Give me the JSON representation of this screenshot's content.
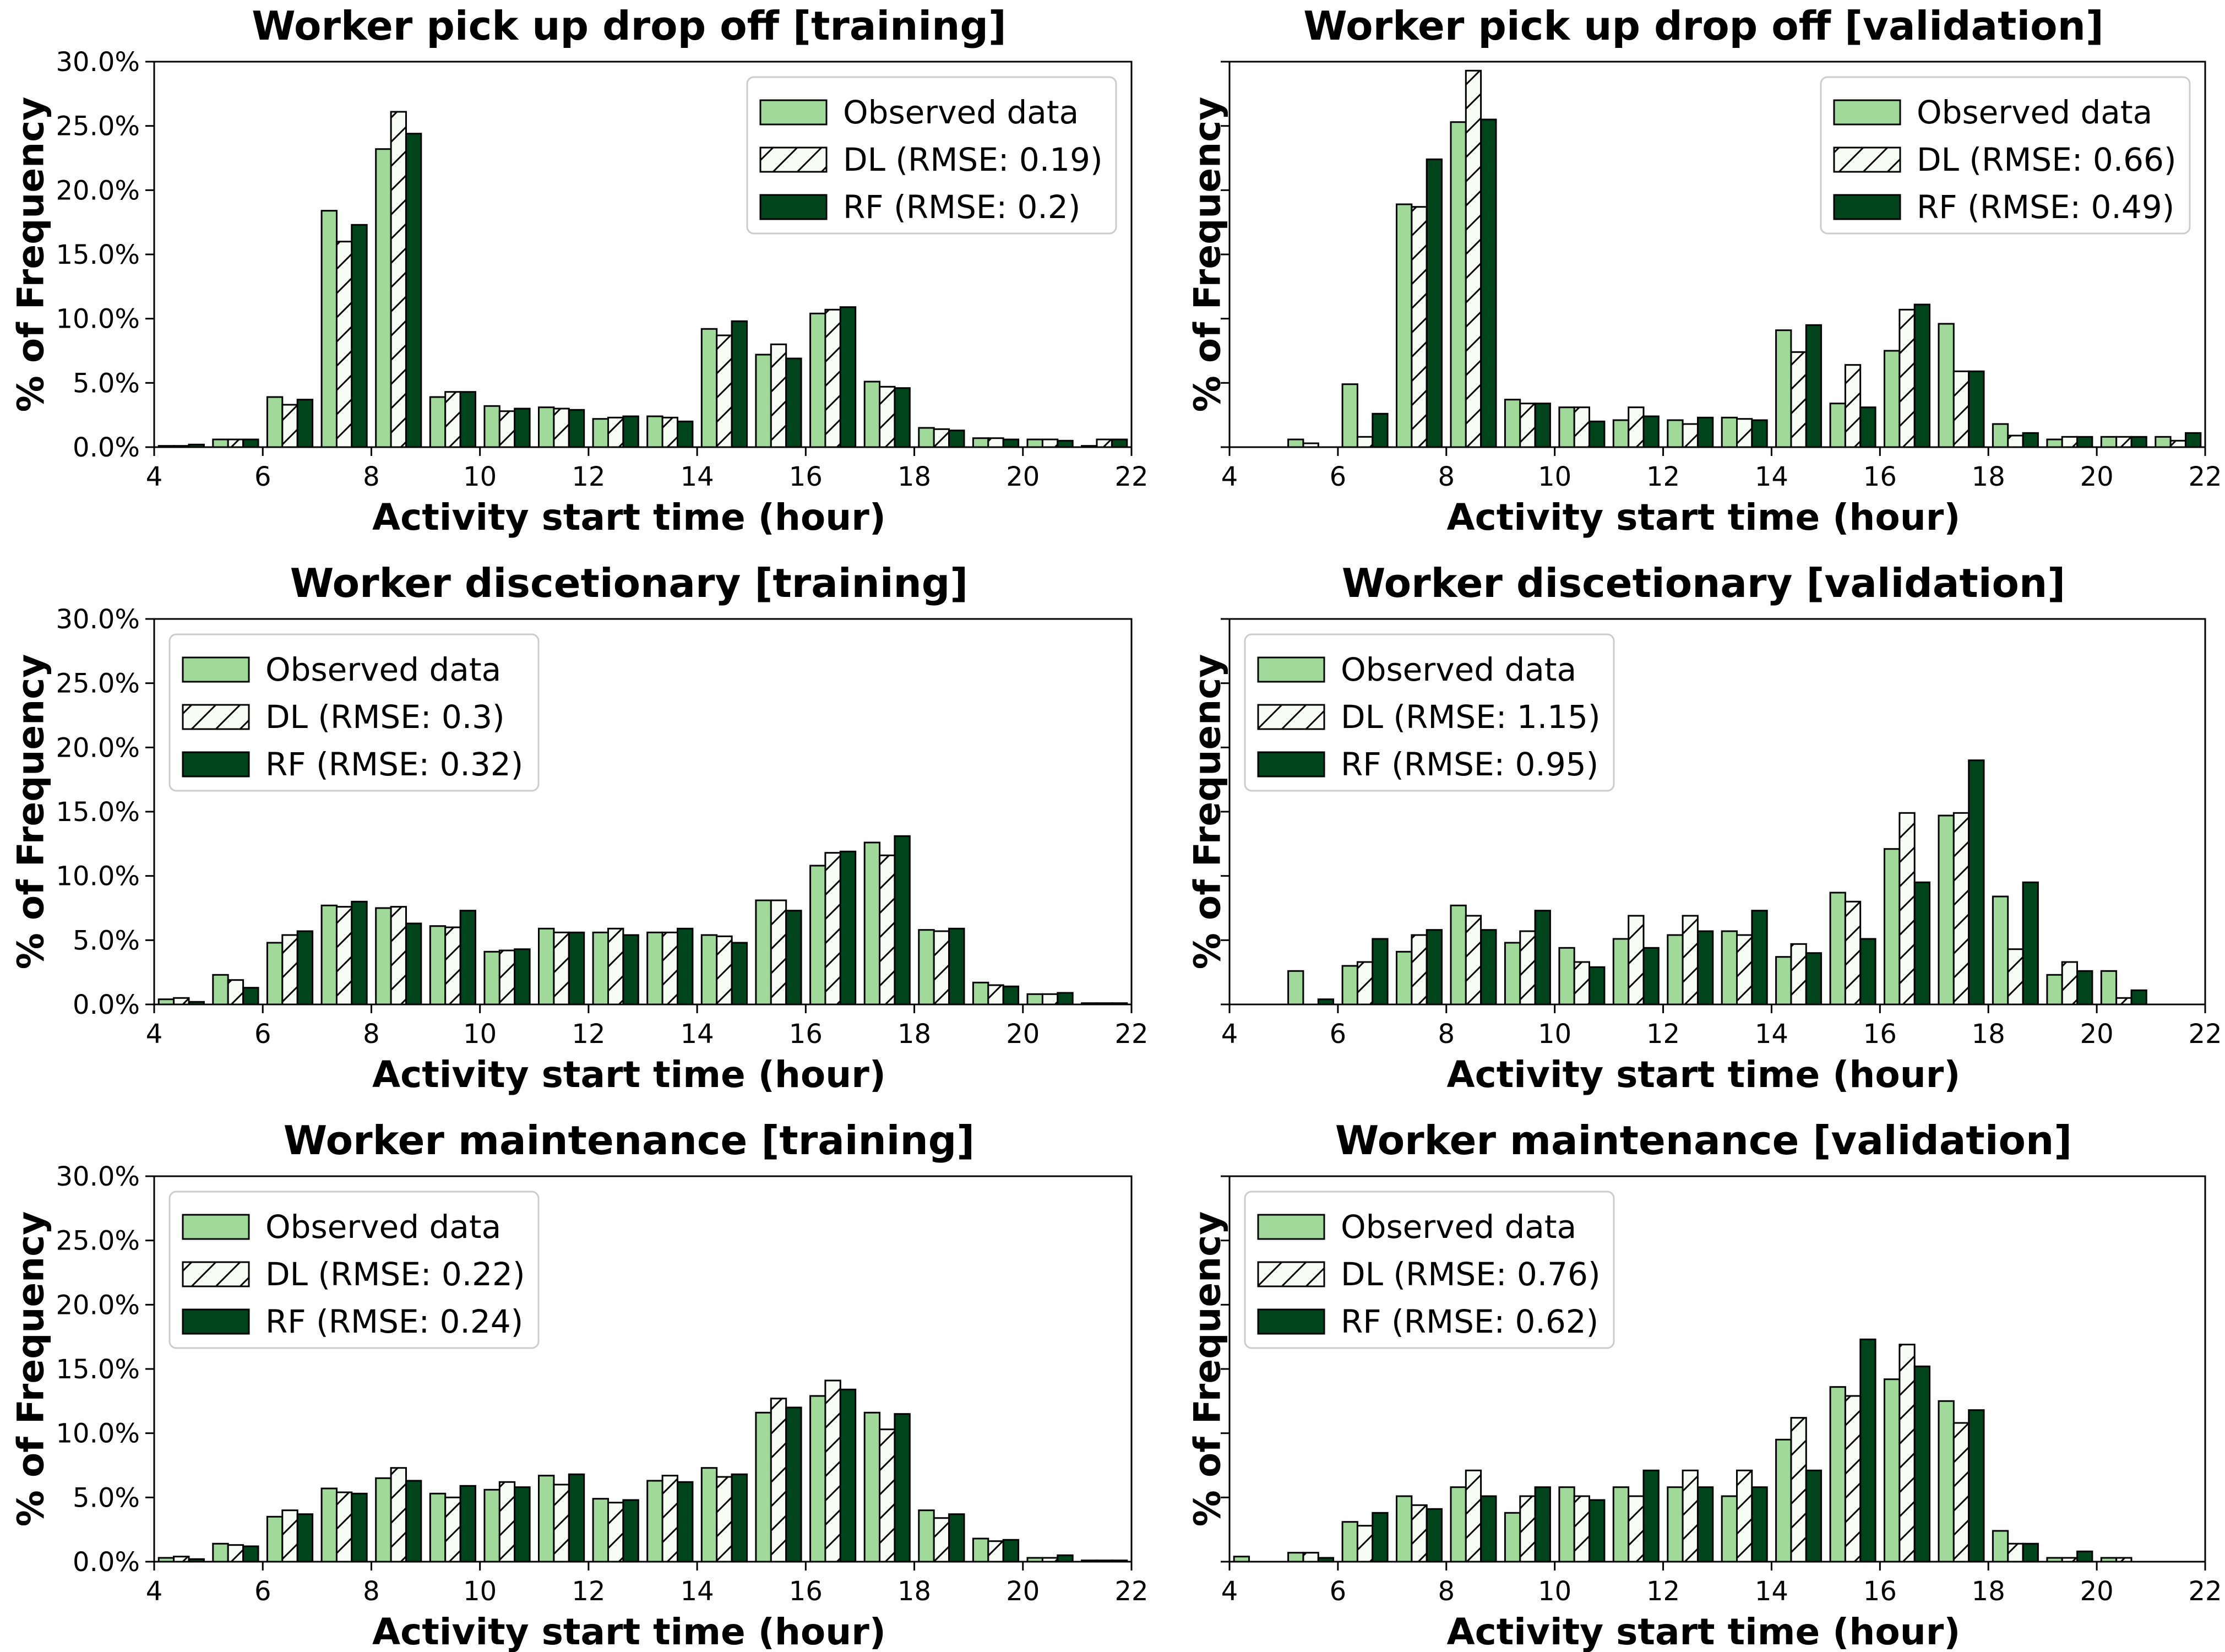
{
  "figure": {
    "colors": {
      "observed": "#a1d99b",
      "dl": "#f7fcf5",
      "rf": "#00441b",
      "edge": "#000000"
    },
    "legend_labels": [
      "Observed data",
      "DL",
      "RF"
    ]
  },
  "chart_data": [
    {
      "type": "bar",
      "title": "Worker pick up drop off [training]",
      "xlabel": "Activity start time (hour)",
      "ylabel": "% of Frequency",
      "x": [
        4.5,
        5.5,
        6.5,
        7.5,
        8.5,
        9.5,
        10.5,
        11.5,
        12.5,
        13.5,
        14.5,
        15.5,
        16.5,
        17.5,
        18.5,
        19.5,
        20.5,
        21.5
      ],
      "xlim": [
        4,
        22
      ],
      "xticks": [
        "4",
        "6",
        "8",
        "10",
        "12",
        "14",
        "16",
        "18",
        "20",
        "22"
      ],
      "ylim": [
        0,
        30
      ],
      "yticks": [
        "0.0%",
        "5.0%",
        "10.0%",
        "15.0%",
        "20.0%",
        "25.0%",
        "30.0%"
      ],
      "show_yticklabels": true,
      "legend_position": "upper right",
      "series": [
        {
          "name": "Observed data",
          "values": [
            0.1,
            0.6,
            3.9,
            18.4,
            23.2,
            3.9,
            3.2,
            3.1,
            2.2,
            2.4,
            9.2,
            7.2,
            10.4,
            5.1,
            1.5,
            0.7,
            0.6,
            0.1
          ]
        },
        {
          "name": "DL (RMSE: 0.19)",
          "values": [
            0.1,
            0.6,
            3.3,
            16.0,
            26.1,
            4.3,
            2.8,
            3.0,
            2.3,
            2.3,
            8.7,
            8.0,
            10.7,
            4.7,
            1.4,
            0.7,
            0.6,
            0.6
          ]
        },
        {
          "name": "RF (RMSE: 0.2)",
          "values": [
            0.2,
            0.6,
            3.7,
            17.3,
            24.4,
            4.3,
            3.0,
            2.9,
            2.4,
            2.0,
            9.8,
            6.9,
            10.9,
            4.6,
            1.3,
            0.6,
            0.5,
            0.6
          ]
        }
      ]
    },
    {
      "type": "bar",
      "title": "Worker pick up drop off [validation]",
      "xlabel": "Activity start time (hour)",
      "ylabel": "% of Frequency",
      "x": [
        4.5,
        5.5,
        6.5,
        7.5,
        8.5,
        9.5,
        10.5,
        11.5,
        12.5,
        13.5,
        14.5,
        15.5,
        16.5,
        17.5,
        18.5,
        19.5,
        20.5,
        21.5
      ],
      "xlim": [
        4,
        22
      ],
      "xticks": [
        "4",
        "6",
        "8",
        "10",
        "12",
        "14",
        "16",
        "18",
        "20",
        "22"
      ],
      "ylim": [
        0,
        30
      ],
      "yticks": [],
      "show_yticklabels": false,
      "legend_position": "upper right",
      "series": [
        {
          "name": "Observed data",
          "values": [
            0,
            0.6,
            4.9,
            18.9,
            25.3,
            3.7,
            3.1,
            2.1,
            2.1,
            2.3,
            9.1,
            3.4,
            7.5,
            9.6,
            1.8,
            0.6,
            0.8,
            0.8
          ]
        },
        {
          "name": "DL (RMSE: 0.66)",
          "values": [
            0,
            0.3,
            0.8,
            18.7,
            29.3,
            3.4,
            3.1,
            3.1,
            1.8,
            2.2,
            7.4,
            6.4,
            10.7,
            5.9,
            0.9,
            0.8,
            0.8,
            0.5
          ]
        },
        {
          "name": "RF (RMSE: 0.49)",
          "values": [
            0,
            0,
            2.6,
            22.4,
            25.5,
            3.4,
            2.0,
            2.4,
            2.3,
            2.1,
            9.5,
            3.1,
            11.1,
            5.9,
            1.1,
            0.8,
            0.8,
            1.1
          ]
        }
      ]
    },
    {
      "type": "bar",
      "title": "Worker discetionary [training]",
      "xlabel": "Activity start time (hour)",
      "ylabel": "% of Frequency",
      "x": [
        4.5,
        5.5,
        6.5,
        7.5,
        8.5,
        9.5,
        10.5,
        11.5,
        12.5,
        13.5,
        14.5,
        15.5,
        16.5,
        17.5,
        18.5,
        19.5,
        20.5,
        21.5
      ],
      "xlim": [
        4,
        22
      ],
      "xticks": [
        "4",
        "6",
        "8",
        "10",
        "12",
        "14",
        "16",
        "18",
        "20",
        "22"
      ],
      "ylim": [
        0,
        30
      ],
      "yticks": [
        "0.0%",
        "5.0%",
        "10.0%",
        "15.0%",
        "20.0%",
        "25.0%",
        "30.0%"
      ],
      "show_yticklabels": true,
      "legend_position": "upper left",
      "series": [
        {
          "name": "Observed data",
          "values": [
            0.4,
            2.3,
            4.8,
            7.7,
            7.5,
            6.1,
            4.1,
            5.9,
            5.6,
            5.6,
            5.4,
            8.1,
            10.8,
            12.6,
            5.8,
            1.7,
            0.8,
            0.1
          ]
        },
        {
          "name": "DL (RMSE: 0.3)",
          "values": [
            0.5,
            1.9,
            5.4,
            7.6,
            7.6,
            6.0,
            4.2,
            5.6,
            5.9,
            5.6,
            5.3,
            8.1,
            11.8,
            11.6,
            5.7,
            1.5,
            0.8,
            0.1
          ]
        },
        {
          "name": "RF (RMSE: 0.32)",
          "values": [
            0.2,
            1.3,
            5.7,
            8.0,
            6.3,
            7.3,
            4.3,
            5.6,
            5.4,
            5.9,
            4.8,
            7.3,
            11.9,
            13.1,
            5.9,
            1.4,
            0.9,
            0.1
          ]
        }
      ]
    },
    {
      "type": "bar",
      "title": "Worker discetionary [validation]",
      "xlabel": "Activity start time (hour)",
      "ylabel": "% of Frequency",
      "x": [
        4.5,
        5.5,
        6.5,
        7.5,
        8.5,
        9.5,
        10.5,
        11.5,
        12.5,
        13.5,
        14.5,
        15.5,
        16.5,
        17.5,
        18.5,
        19.5,
        20.5,
        21.5
      ],
      "xlim": [
        4,
        22
      ],
      "xticks": [
        "4",
        "6",
        "8",
        "10",
        "12",
        "14",
        "16",
        "18",
        "20",
        "22"
      ],
      "ylim": [
        0,
        30
      ],
      "yticks": [],
      "show_yticklabels": false,
      "legend_position": "upper left",
      "series": [
        {
          "name": "Observed data",
          "values": [
            0,
            2.6,
            3.0,
            4.1,
            7.7,
            4.8,
            4.4,
            5.1,
            5.4,
            5.7,
            3.7,
            8.7,
            12.1,
            14.7,
            8.4,
            2.3,
            2.6,
            0
          ]
        },
        {
          "name": "DL (RMSE: 1.15)",
          "values": [
            0,
            0,
            3.3,
            5.4,
            6.9,
            5.7,
            3.3,
            6.9,
            6.9,
            5.4,
            4.7,
            8.0,
            14.9,
            14.9,
            4.3,
            3.3,
            0.5,
            0
          ]
        },
        {
          "name": "RF (RMSE: 0.95)",
          "values": [
            0,
            0.4,
            5.1,
            5.8,
            5.8,
            7.3,
            2.9,
            4.4,
            5.7,
            7.3,
            4.0,
            5.1,
            9.5,
            19.0,
            9.5,
            2.6,
            1.1,
            0
          ]
        }
      ]
    },
    {
      "type": "bar",
      "title": "Worker maintenance [training]",
      "xlabel": "Activity start time (hour)",
      "ylabel": "% of Frequency",
      "x": [
        4.5,
        5.5,
        6.5,
        7.5,
        8.5,
        9.5,
        10.5,
        11.5,
        12.5,
        13.5,
        14.5,
        15.5,
        16.5,
        17.5,
        18.5,
        19.5,
        20.5,
        21.5
      ],
      "xlim": [
        4,
        22
      ],
      "xticks": [
        "4",
        "6",
        "8",
        "10",
        "12",
        "14",
        "16",
        "18",
        "20",
        "22"
      ],
      "ylim": [
        0,
        30
      ],
      "yticks": [
        "0.0%",
        "5.0%",
        "10.0%",
        "15.0%",
        "20.0%",
        "25.0%",
        "30.0%"
      ],
      "show_yticklabels": true,
      "legend_position": "upper left",
      "series": [
        {
          "name": "Observed data",
          "values": [
            0.3,
            1.4,
            3.5,
            5.7,
            6.5,
            5.3,
            5.6,
            6.7,
            4.9,
            6.3,
            7.3,
            11.6,
            12.9,
            11.6,
            4.0,
            1.8,
            0.3,
            0.1
          ]
        },
        {
          "name": "DL (RMSE: 0.22)",
          "values": [
            0.4,
            1.3,
            4.0,
            5.4,
            7.3,
            5.0,
            6.2,
            6.0,
            4.6,
            6.7,
            6.6,
            12.7,
            14.1,
            10.3,
            3.4,
            1.6,
            0.3,
            0.1
          ]
        },
        {
          "name": "RF (RMSE: 0.24)",
          "values": [
            0.2,
            1.2,
            3.7,
            5.3,
            6.3,
            5.9,
            5.8,
            6.8,
            4.8,
            6.2,
            6.8,
            12.0,
            13.4,
            11.5,
            3.7,
            1.7,
            0.5,
            0.1
          ]
        }
      ]
    },
    {
      "type": "bar",
      "title": "Worker maintenance [validation]",
      "xlabel": "Activity start time (hour)",
      "ylabel": "% of Frequency",
      "x": [
        4.5,
        5.5,
        6.5,
        7.5,
        8.5,
        9.5,
        10.5,
        11.5,
        12.5,
        13.5,
        14.5,
        15.5,
        16.5,
        17.5,
        18.5,
        19.5,
        20.5,
        21.5
      ],
      "xlim": [
        4,
        22
      ],
      "xticks": [
        "4",
        "6",
        "8",
        "10",
        "12",
        "14",
        "16",
        "18",
        "20",
        "22"
      ],
      "ylim": [
        0,
        30
      ],
      "yticks": [],
      "show_yticklabels": false,
      "legend_position": "upper left",
      "series": [
        {
          "name": "Observed data",
          "values": [
            0.4,
            0.7,
            3.1,
            5.1,
            5.8,
            3.8,
            5.8,
            5.8,
            5.8,
            5.1,
            9.5,
            13.6,
            14.2,
            12.5,
            2.4,
            0.3,
            0.3,
            0
          ]
        },
        {
          "name": "DL (RMSE: 0.76)",
          "values": [
            0,
            0.7,
            2.8,
            4.4,
            7.1,
            5.1,
            5.1,
            5.1,
            7.1,
            7.1,
            11.2,
            12.9,
            16.9,
            10.8,
            1.4,
            0.3,
            0.3,
            0
          ]
        },
        {
          "name": "RF (RMSE: 0.62)",
          "values": [
            0,
            0.3,
            3.8,
            4.1,
            5.1,
            5.8,
            4.8,
            7.1,
            5.8,
            5.8,
            7.1,
            17.3,
            15.2,
            11.8,
            1.4,
            0.8,
            0,
            0
          ]
        }
      ]
    }
  ]
}
